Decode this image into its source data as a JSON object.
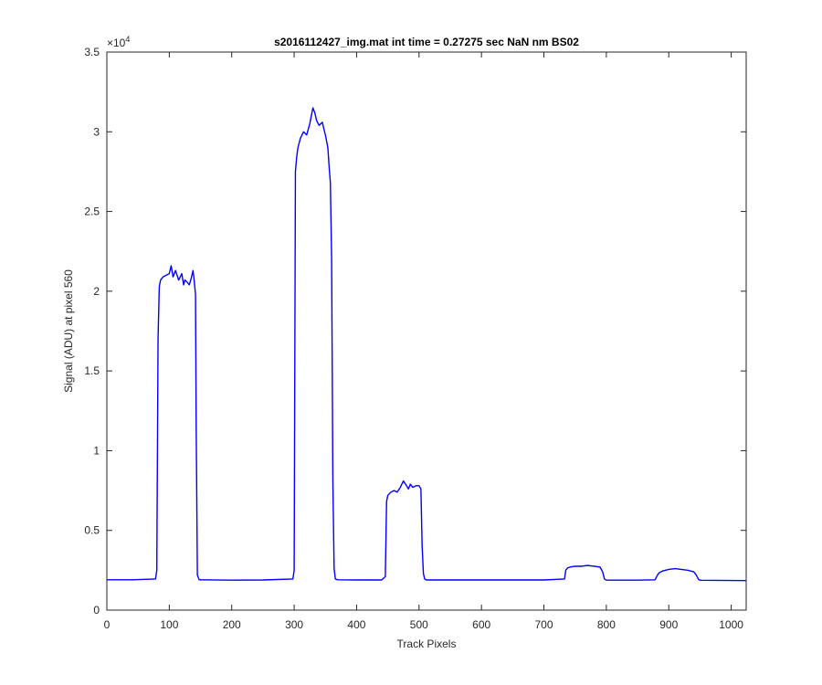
{
  "chart_data": {
    "type": "line",
    "title": "s2016112427_img.mat int time = 0.27275 sec  NaN nm BS02",
    "xlabel": "Track Pixels",
    "ylabel": "Signal (ADU) at pixel 560",
    "y_exponent_base": "×10",
    "y_exponent_power": "4",
    "xlim": [
      0,
      1024
    ],
    "ylim": [
      0,
      35000
    ],
    "x_ticks": [
      0,
      100,
      200,
      300,
      400,
      500,
      600,
      700,
      800,
      900,
      1000
    ],
    "x_tick_labels": [
      "0",
      "100",
      "200",
      "300",
      "400",
      "500",
      "600",
      "700",
      "800",
      "900",
      "1000"
    ],
    "y_ticks": [
      0,
      5000,
      10000,
      15000,
      20000,
      25000,
      30000,
      35000
    ],
    "y_tick_labels": [
      "0",
      "0.5",
      "1",
      "1.5",
      "2",
      "2.5",
      "3",
      "3.5"
    ],
    "grid": false,
    "box": true,
    "line_color": "#0000ff",
    "series": [
      {
        "x": [
          0,
          40,
          78,
          80,
          82,
          84,
          86,
          90,
          95,
          100,
          103,
          106,
          110,
          115,
          120,
          123,
          125,
          128,
          132,
          135,
          138,
          140,
          142,
          143,
          145,
          148,
          150,
          200,
          250,
          298,
          300,
          302,
          304,
          306,
          310,
          315,
          320,
          325,
          330,
          333,
          336,
          340,
          345,
          350,
          354,
          356,
          358,
          360,
          362,
          364,
          366,
          370,
          400,
          440,
          446,
          448,
          450,
          455,
          460,
          465,
          470,
          475,
          480,
          483,
          486,
          490,
          495,
          500,
          503,
          505,
          507,
          509,
          512,
          600,
          700,
          733,
          735,
          738,
          742,
          750,
          760,
          770,
          780,
          790,
          794,
          797,
          800,
          850,
          878,
          882,
          885,
          890,
          900,
          910,
          920,
          930,
          940,
          944,
          948,
          952,
          1000,
          1024
        ],
        "y": [
          1900,
          1900,
          1950,
          2500,
          17000,
          20300,
          20700,
          20900,
          21000,
          21100,
          21600,
          20900,
          21300,
          20700,
          21100,
          20400,
          20700,
          20600,
          20400,
          20800,
          21300,
          20600,
          19800,
          12000,
          2200,
          1900,
          1900,
          1880,
          1890,
          1950,
          2500,
          27500,
          28400,
          29000,
          29600,
          30000,
          29800,
          30500,
          31500,
          31200,
          30700,
          30400,
          30600,
          29800,
          29000,
          27800,
          26800,
          22000,
          8000,
          2600,
          1950,
          1900,
          1890,
          1890,
          2100,
          6800,
          7200,
          7400,
          7500,
          7400,
          7700,
          8100,
          7800,
          7600,
          7900,
          7700,
          7800,
          7800,
          7600,
          4000,
          2300,
          1950,
          1890,
          1890,
          1890,
          1950,
          2500,
          2650,
          2700,
          2750,
          2750,
          2800,
          2750,
          2700,
          2400,
          1950,
          1880,
          1880,
          1900,
          2200,
          2350,
          2450,
          2550,
          2600,
          2550,
          2500,
          2400,
          2200,
          1900,
          1870,
          1860,
          1850
        ]
      }
    ]
  }
}
